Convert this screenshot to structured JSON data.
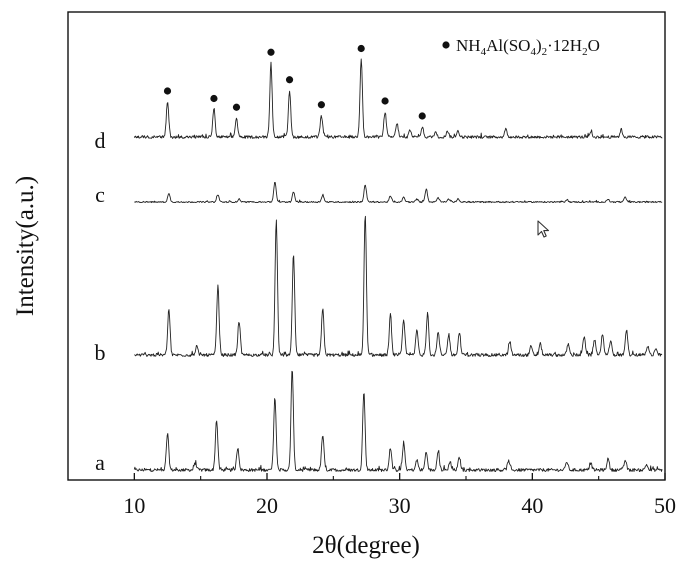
{
  "chart_data": {
    "type": "line",
    "xlabel": "2θ(degree)",
    "ylabel": "Intensity(a.u.)",
    "xlim": [
      5,
      50
    ],
    "x_ticks": [
      10,
      20,
      30,
      40,
      50
    ],
    "grid": false,
    "y_tick_labels": false,
    "legend": {
      "position": "top-right",
      "marker": "filled-circle",
      "label": "NH4Al(SO4)2·12H2O",
      "formula_parts": [
        {
          "text": "NH",
          "sub": false
        },
        {
          "text": "4",
          "sub": true
        },
        {
          "text": "Al(SO",
          "sub": false
        },
        {
          "text": "4",
          "sub": true
        },
        {
          "text": ")",
          "sub": false
        },
        {
          "text": "2",
          "sub": true
        },
        {
          "text": "·12H",
          "sub": false
        },
        {
          "text": "2",
          "sub": true
        },
        {
          "text": "O",
          "sub": false
        }
      ]
    },
    "series": [
      {
        "label": "a",
        "baseline": 0,
        "peaks": [
          [
            12.5,
            0.26
          ],
          [
            14.6,
            0.05
          ],
          [
            16.2,
            0.36
          ],
          [
            17.8,
            0.16
          ],
          [
            20.6,
            0.52
          ],
          [
            21.9,
            0.72
          ],
          [
            24.2,
            0.25
          ],
          [
            27.3,
            0.56
          ],
          [
            29.3,
            0.16
          ],
          [
            30.3,
            0.19
          ],
          [
            31.3,
            0.07
          ],
          [
            32.0,
            0.13
          ],
          [
            32.9,
            0.14
          ],
          [
            33.8,
            0.06
          ],
          [
            34.5,
            0.09
          ],
          [
            38.2,
            0.06
          ],
          [
            42.6,
            0.06
          ],
          [
            44.4,
            0.05
          ],
          [
            45.7,
            0.08
          ],
          [
            47.0,
            0.07
          ],
          [
            48.6,
            0.04
          ]
        ]
      },
      {
        "label": "b",
        "baseline": 0,
        "peaks": [
          [
            12.6,
            0.33
          ],
          [
            14.7,
            0.06
          ],
          [
            16.3,
            0.48
          ],
          [
            17.9,
            0.24
          ],
          [
            20.7,
            0.96
          ],
          [
            22.0,
            0.72
          ],
          [
            24.2,
            0.33
          ],
          [
            27.4,
            1.0
          ],
          [
            29.3,
            0.28
          ],
          [
            30.3,
            0.25
          ],
          [
            31.3,
            0.18
          ],
          [
            32.1,
            0.3
          ],
          [
            32.9,
            0.16
          ],
          [
            33.7,
            0.15
          ],
          [
            34.5,
            0.16
          ],
          [
            38.3,
            0.1
          ],
          [
            39.9,
            0.06
          ],
          [
            40.6,
            0.08
          ],
          [
            42.7,
            0.08
          ],
          [
            43.9,
            0.13
          ],
          [
            44.7,
            0.11
          ],
          [
            45.3,
            0.14
          ],
          [
            45.9,
            0.1
          ],
          [
            47.1,
            0.18
          ],
          [
            48.7,
            0.06
          ],
          [
            49.3,
            0.05
          ]
        ]
      },
      {
        "label": "c",
        "baseline": 0,
        "peaks": [
          [
            12.6,
            0.14
          ],
          [
            16.3,
            0.12
          ],
          [
            17.9,
            0.05
          ],
          [
            20.6,
            0.34
          ],
          [
            22.0,
            0.17
          ],
          [
            24.2,
            0.12
          ],
          [
            27.4,
            0.3
          ],
          [
            29.3,
            0.1
          ],
          [
            30.3,
            0.08
          ],
          [
            31.3,
            0.05
          ],
          [
            32.0,
            0.22
          ],
          [
            32.9,
            0.07
          ],
          [
            33.7,
            0.05
          ],
          [
            34.4,
            0.05
          ],
          [
            42.6,
            0.04
          ],
          [
            45.7,
            0.05
          ],
          [
            47.0,
            0.08
          ]
        ]
      },
      {
        "label": "d",
        "baseline": 0,
        "peaks": [
          [
            12.5,
            0.28
          ],
          [
            16.0,
            0.22
          ],
          [
            17.7,
            0.15
          ],
          [
            20.3,
            0.59
          ],
          [
            21.7,
            0.37
          ],
          [
            24.1,
            0.17
          ],
          [
            27.1,
            0.62
          ],
          [
            28.9,
            0.2
          ],
          [
            29.8,
            0.11
          ],
          [
            30.8,
            0.06
          ],
          [
            31.7,
            0.08
          ],
          [
            32.7,
            0.04
          ],
          [
            33.6,
            0.05
          ],
          [
            34.4,
            0.05
          ],
          [
            38.0,
            0.06
          ],
          [
            44.4,
            0.04
          ],
          [
            46.7,
            0.06
          ]
        ]
      }
    ],
    "markers": {
      "series": "d",
      "symbol": "●",
      "x": [
        12.5,
        16.0,
        17.7,
        20.3,
        21.7,
        24.1,
        27.1,
        28.9,
        31.7
      ]
    }
  }
}
